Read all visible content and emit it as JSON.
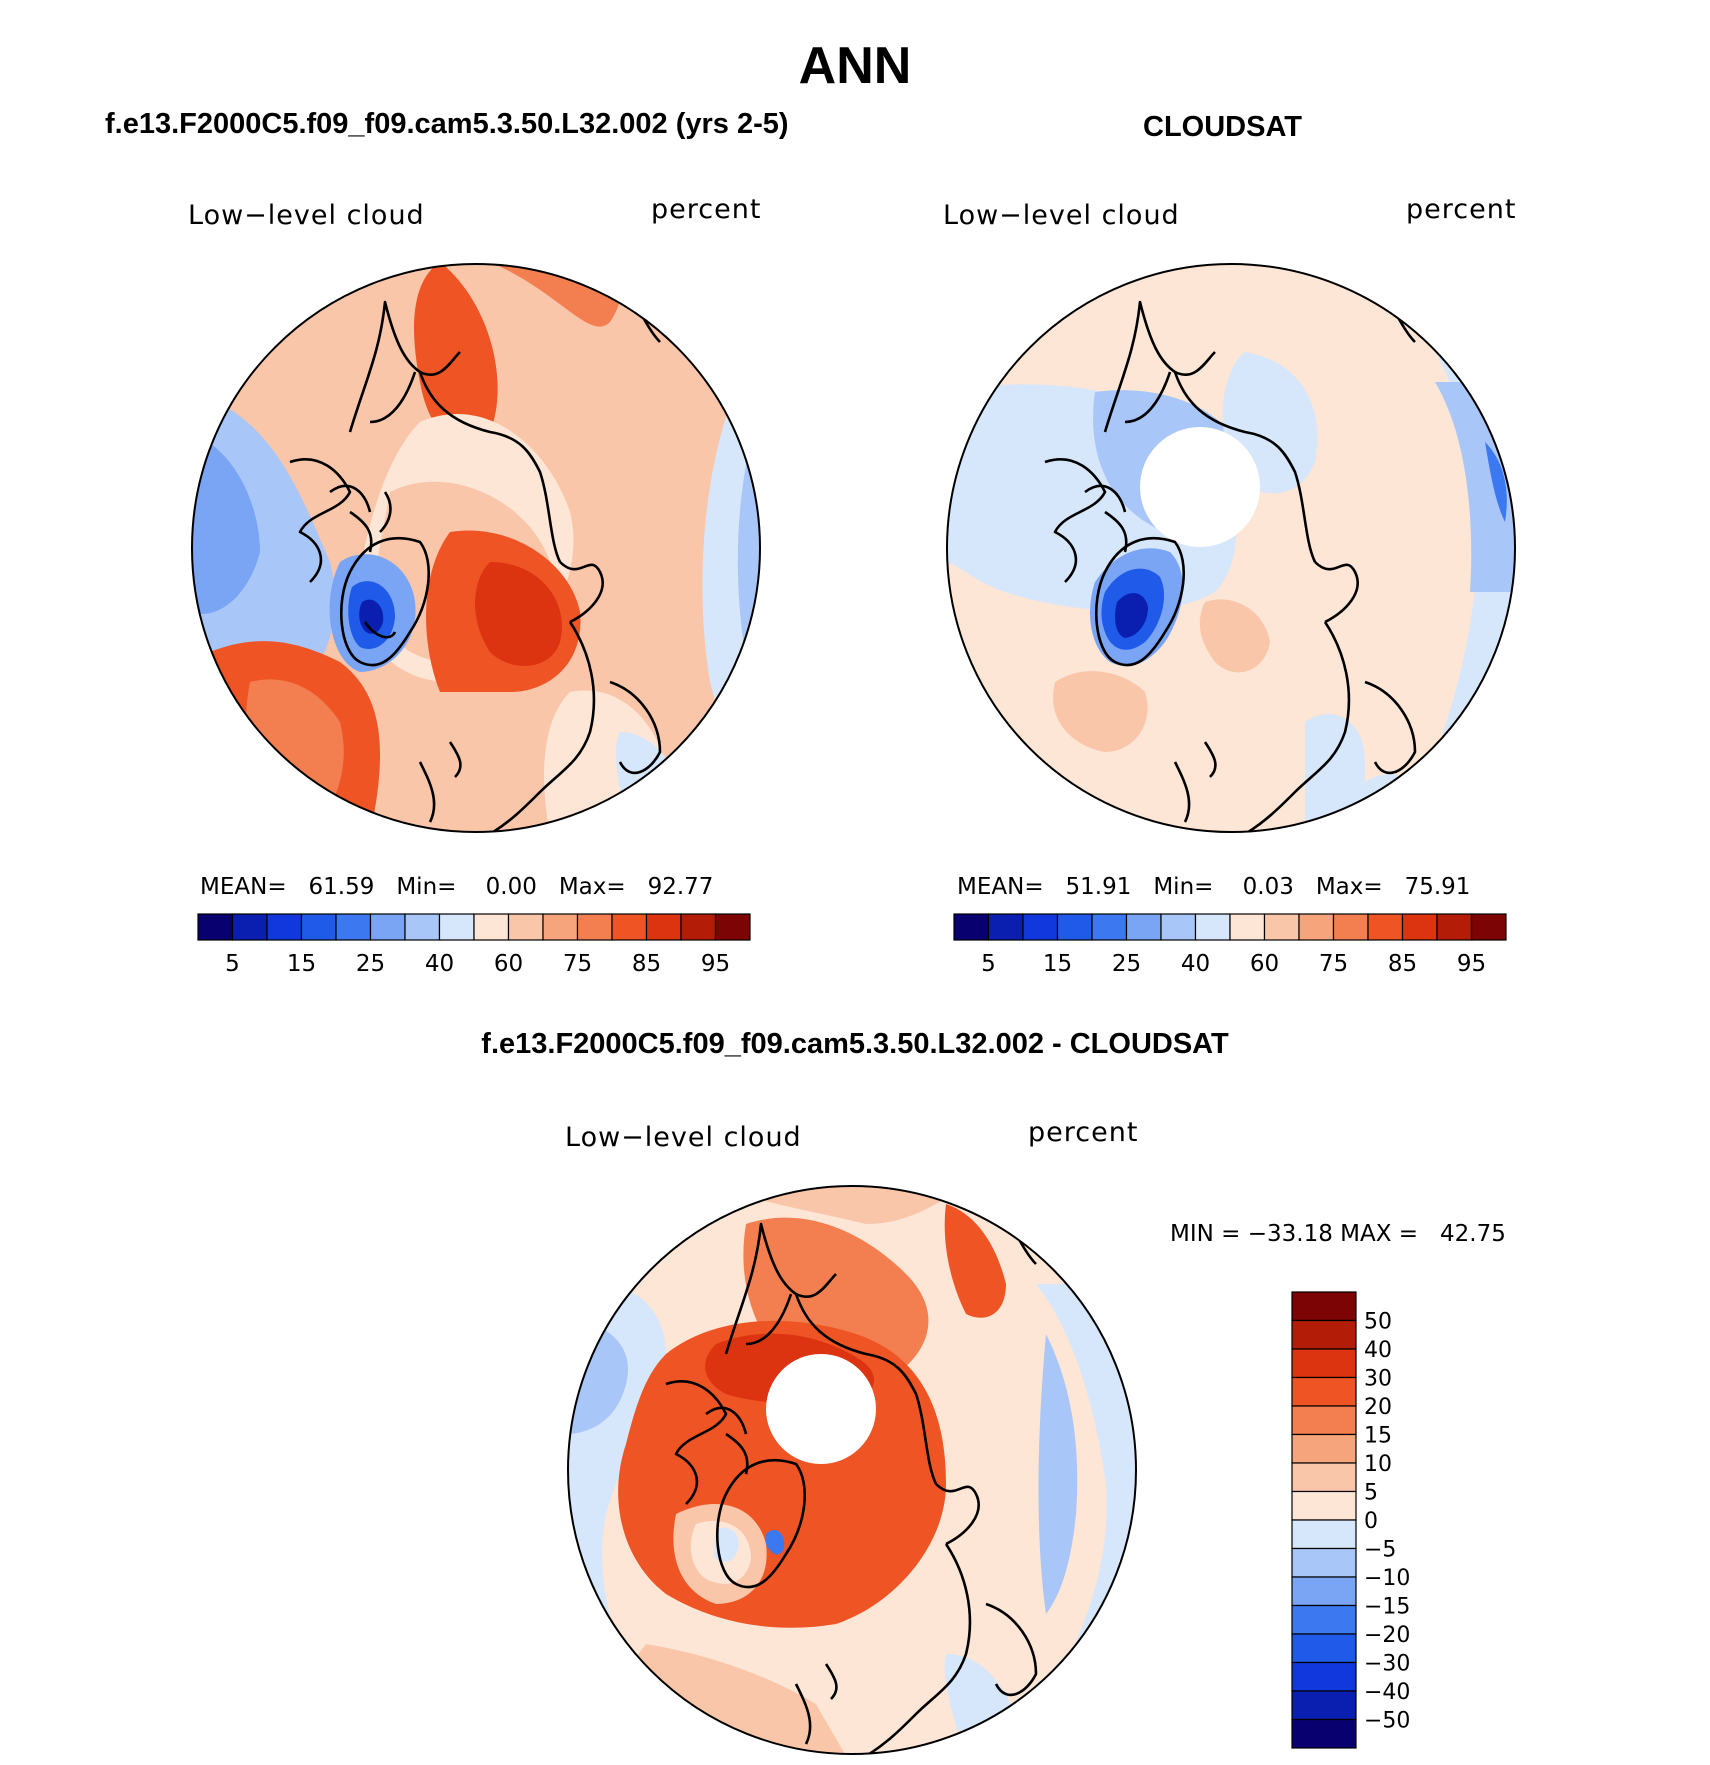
{
  "figure": {
    "season": "ANN",
    "model_title": "f.e13.F2000C5.f09_f09.cam5.3.50.L32.002 (yrs 2-5)",
    "obs_title": "CLOUDSAT",
    "diff_title": "f.e13.F2000C5.f09_f09.cam5.3.50.L32.002 - CLOUDSAT"
  },
  "panels": {
    "model": {
      "variable": "Low−level cloud",
      "units": "percent",
      "mean_label": "MEAN=",
      "mean": "61.59",
      "min_label": "Min=",
      "min": "0.00",
      "max_label": "Max=",
      "max": "92.77"
    },
    "obs": {
      "variable": "Low−level cloud",
      "units": "percent",
      "mean_label": "MEAN=",
      "mean": "51.91",
      "min_label": "Min=",
      "min": "0.03",
      "max_label": "Max=",
      "max": "75.91"
    },
    "diff": {
      "variable": "Low−level cloud",
      "units": "percent",
      "minmax_text": "MIN = −33.18 MAX =   42.75"
    }
  },
  "colorbars": {
    "abs_colors": [
      "#08006e",
      "#0a1fb0",
      "#1038dc",
      "#1f5ae8",
      "#3c78f0",
      "#7aa4f4",
      "#a9c6f8",
      "#d6e6fb",
      "#fde6d6",
      "#f9c6aa",
      "#f6a47c",
      "#f37e4f",
      "#ee5424",
      "#dc3410",
      "#b31d08",
      "#7c0404"
    ],
    "abs_ticks": [
      "5",
      "15",
      "25",
      "40",
      "60",
      "75",
      "85",
      "95"
    ],
    "diff_colors": [
      "#7c0404",
      "#b31d08",
      "#dc3410",
      "#ee5424",
      "#f37e4f",
      "#f6a47c",
      "#f9c6aa",
      "#fde6d6",
      "#d6e6fb",
      "#a9c6f8",
      "#7aa4f4",
      "#3c78f0",
      "#1f5ae8",
      "#1038dc",
      "#0a1fb0",
      "#08006e"
    ],
    "diff_ticks": [
      "50",
      "40",
      "30",
      "20",
      "15",
      "10",
      "5",
      "0",
      "−5",
      "−10",
      "−15",
      "−20",
      "−30",
      "−40",
      "−50"
    ]
  },
  "chart_data": [
    {
      "type": "heatmap",
      "title": "Low−level cloud",
      "units": "percent",
      "projection": "north polar stereographic",
      "color_levels": [
        5,
        10,
        15,
        20,
        25,
        30,
        40,
        50,
        60,
        65,
        75,
        80,
        85,
        90,
        95
      ],
      "mean": 61.59,
      "min": 0.0,
      "max": 92.77
    },
    {
      "type": "heatmap",
      "title": "Low−level cloud",
      "units": "percent",
      "projection": "north polar stereographic",
      "color_levels": [
        5,
        10,
        15,
        20,
        25,
        30,
        40,
        50,
        60,
        65,
        75,
        80,
        85,
        90,
        95
      ],
      "mean": 51.91,
      "min": 0.03,
      "max": 75.91,
      "missing_region": "north pole"
    },
    {
      "type": "heatmap",
      "title": "Low−level cloud",
      "units": "percent",
      "projection": "north polar stereographic",
      "color_levels": [
        -50,
        -40,
        -30,
        -20,
        -15,
        -10,
        -5,
        0,
        5,
        10,
        15,
        20,
        30,
        40,
        50
      ],
      "min": -33.18,
      "max": 42.75,
      "missing_region": "north pole"
    }
  ]
}
